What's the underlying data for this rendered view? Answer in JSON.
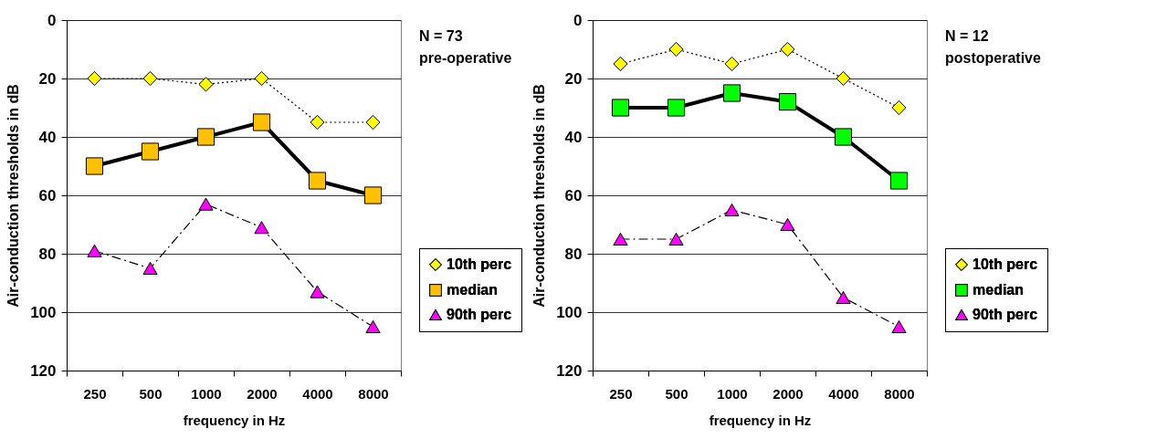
{
  "chart_data": [
    {
      "type": "line",
      "categories": [
        "250",
        "500",
        "1000",
        "2000",
        "4000",
        "8000"
      ],
      "xlabel": "frequency in Hz",
      "ylabel": "Air-conduction thresholds in dB",
      "ylim": [
        120,
        0
      ],
      "yticks": [
        0,
        20,
        40,
        60,
        80,
        100,
        120
      ],
      "grid": "y",
      "legend": "bottom right",
      "annotations": [
        "N = 73",
        "pre-operative"
      ],
      "series": [
        {
          "name": "10th perc",
          "color": "#ffff00",
          "marker": "diamond",
          "line_style": "dotted",
          "values": [
            20,
            20,
            22,
            20,
            35,
            35
          ]
        },
        {
          "name": "median",
          "color": "#ffc000",
          "marker": "square",
          "line_style": "solid",
          "values": [
            50,
            45,
            40,
            35,
            55,
            60
          ]
        },
        {
          "name": "90th perc",
          "color": "#ff00ff",
          "marker": "triangle",
          "line_style": "dashed",
          "values": [
            79,
            85,
            63,
            71,
            93,
            105
          ]
        }
      ]
    },
    {
      "type": "line",
      "categories": [
        "250",
        "500",
        "1000",
        "2000",
        "4000",
        "8000"
      ],
      "xlabel": "frequency in Hz",
      "ylabel": "Air-conduction thresholds in dB",
      "ylim": [
        120,
        0
      ],
      "yticks": [
        0,
        20,
        40,
        60,
        80,
        100,
        120
      ],
      "grid": "y",
      "legend": "bottom right",
      "annotations": [
        "N = 12",
        "postoperative"
      ],
      "series": [
        {
          "name": "10th perc",
          "color": "#ffff00",
          "marker": "diamond",
          "line_style": "dotted",
          "values": [
            15,
            10,
            15,
            10,
            20,
            30
          ]
        },
        {
          "name": "median",
          "color": "#00ff00",
          "marker": "square",
          "line_style": "solid",
          "values": [
            30,
            30,
            25,
            28,
            40,
            55
          ]
        },
        {
          "name": "90th perc",
          "color": "#ff00ff",
          "marker": "triangle",
          "line_style": "dashed",
          "values": [
            75,
            75,
            65,
            70,
            95,
            105
          ]
        }
      ]
    }
  ]
}
